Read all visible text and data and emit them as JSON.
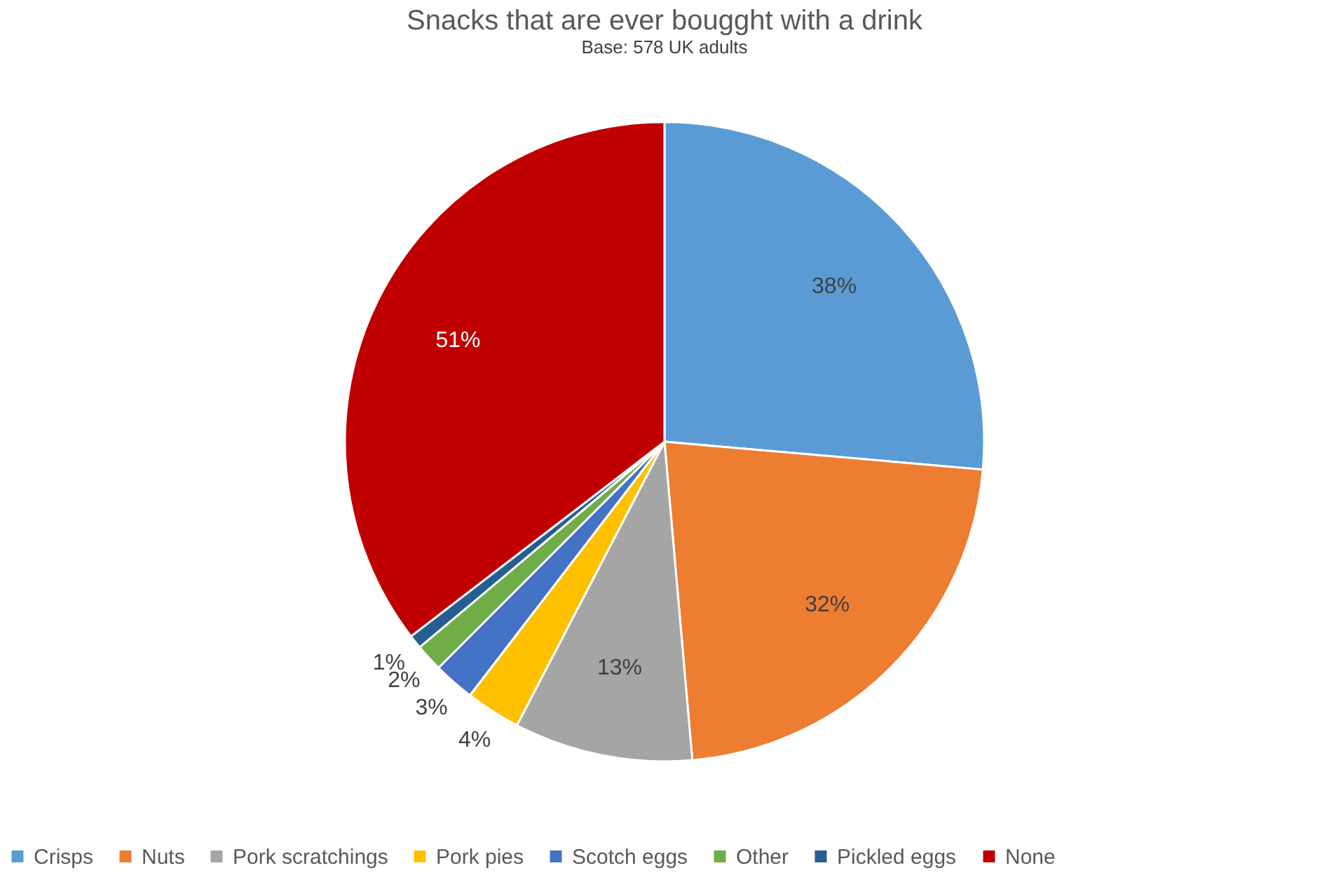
{
  "chart_data": {
    "type": "pie",
    "title": "Snacks that are ever bougght with a drink",
    "subtitle": "Base: 578 UK adults",
    "categories": [
      "Crisps",
      "Nuts",
      "Pork scratchings",
      "Pork pies",
      "Scotch eggs",
      "Other",
      "Pickled eggs",
      "None"
    ],
    "values": [
      38,
      32,
      13,
      4,
      3,
      2,
      1,
      51
    ],
    "value_labels": [
      "38%",
      "32%",
      "13%",
      "4%",
      "3%",
      "2%",
      "1%",
      "51%"
    ],
    "colors": [
      "#5b9bd5",
      "#ed7d31",
      "#a5a5a5",
      "#ffc000",
      "#4472c4",
      "#70ad47",
      "#255e91",
      "#c00000"
    ],
    "legend": "bottom"
  }
}
